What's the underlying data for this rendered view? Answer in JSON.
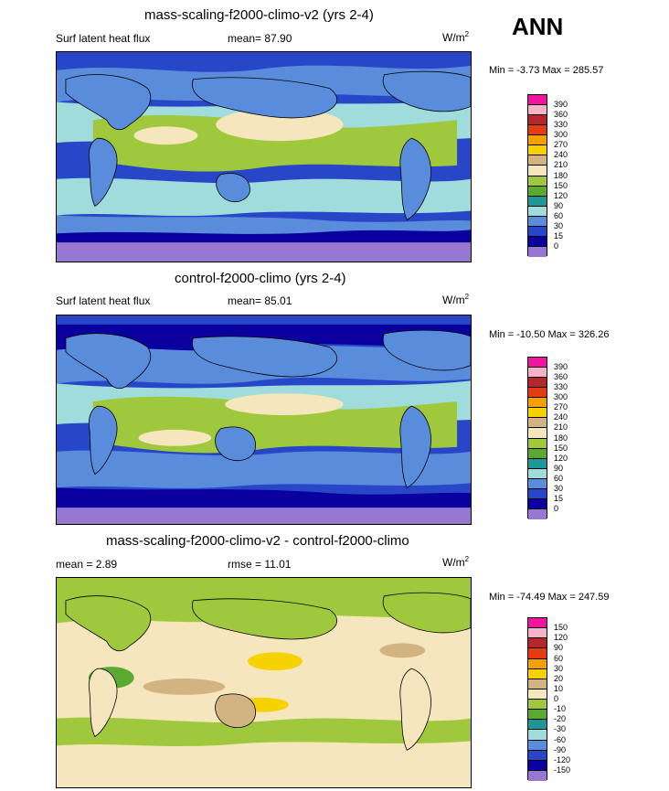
{
  "season": "ANN",
  "panels": [
    {
      "title": "mass-scaling-f2000-climo-v2 (yrs 2-4)",
      "left_label": "Surf latent heat flux",
      "stat_label": "mean=  87.90",
      "units_base": "W/m",
      "units_sup": "2",
      "minmax": "Min =  -3.73 Max = 285.57",
      "colorbar": {
        "levels": [
          "390",
          "360",
          "330",
          "300",
          "270",
          "240",
          "210",
          "180",
          "150",
          "120",
          "90",
          "60",
          "30",
          "15",
          "0"
        ],
        "colors": [
          "#f0149f",
          "#f5b4c8",
          "#b4282d",
          "#e63c14",
          "#f5a000",
          "#f5d200",
          "#d2b482",
          "#f5e6be",
          "#a0c83c",
          "#5aaa32",
          "#1e9696",
          "#a0dcdc",
          "#5a8cdc",
          "#2846c8",
          "#0a00a0",
          "#9678d2"
        ]
      }
    },
    {
      "title": "control-f2000-climo (yrs 2-4)",
      "left_label": "Surf latent heat flux",
      "stat_label": "mean=  85.01",
      "units_base": "W/m",
      "units_sup": "2",
      "minmax": "Min = -10.50 Max = 326.26",
      "colorbar": {
        "levels": [
          "390",
          "360",
          "330",
          "300",
          "270",
          "240",
          "210",
          "180",
          "150",
          "120",
          "90",
          "60",
          "30",
          "15",
          "0"
        ],
        "colors": [
          "#f0149f",
          "#f5b4c8",
          "#b4282d",
          "#e63c14",
          "#f5a000",
          "#f5d200",
          "#d2b482",
          "#f5e6be",
          "#a0c83c",
          "#5aaa32",
          "#1e9696",
          "#a0dcdc",
          "#5a8cdc",
          "#2846c8",
          "#0a00a0",
          "#9678d2"
        ]
      }
    },
    {
      "title": "mass-scaling-f2000-climo-v2 - control-f2000-climo",
      "left_label": "mean =   2.89",
      "stat_label": "rmse =  11.01",
      "units_base": "W/m",
      "units_sup": "2",
      "minmax": "Min = -74.49 Max = 247.59",
      "colorbar": {
        "levels": [
          "150",
          "120",
          "90",
          "60",
          "30",
          "20",
          "10",
          "0",
          "-10",
          "-20",
          "-30",
          "-60",
          "-90",
          "-120",
          "-150"
        ],
        "colors": [
          "#f0149f",
          "#f5b4c8",
          "#b4282d",
          "#e63c14",
          "#f5a000",
          "#f5d200",
          "#d2b482",
          "#f5e6be",
          "#a0c83c",
          "#5aaa32",
          "#1e9696",
          "#a0dcdc",
          "#5a8cdc",
          "#2846c8",
          "#0a00a0",
          "#9678d2"
        ]
      }
    }
  ],
  "map_colors": {
    "panel1": {
      "ocean_low": "#2846c8",
      "ocean_mid": "#5a8cdc",
      "ocean_high": "#a0dcdc",
      "tropics": "#a0c83c",
      "peak": "#f5e6be",
      "polar": "#9678d2",
      "land": "#5a8cdc",
      "dense": "#0a00a0"
    },
    "panel2": {
      "ocean_low": "#2846c8",
      "ocean_mid": "#5a8cdc",
      "ocean_high": "#a0dcdc",
      "tropics": "#a0c83c",
      "peak": "#f5e6be",
      "polar": "#9678d2",
      "land": "#5a8cdc",
      "dense": "#0a00a0"
    },
    "panel3": {
      "base": "#f5e6be",
      "neg": "#a0c83c",
      "pos": "#d2b482",
      "hot": "#f5d200",
      "cool": "#5aaa32"
    }
  }
}
